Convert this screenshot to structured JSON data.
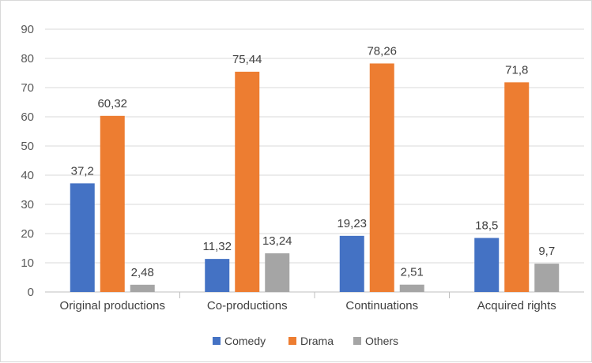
{
  "chart_data": {
    "type": "bar",
    "categories": [
      "Original productions",
      "Co-productions",
      "Continuations",
      "Acquired rights"
    ],
    "series": [
      {
        "name": "Comedy",
        "color": "#4472c4",
        "values": [
          37.2,
          11.32,
          19.23,
          18.5
        ],
        "labels": [
          "37,2",
          "11,32",
          "19,23",
          "18,5"
        ]
      },
      {
        "name": "Drama",
        "color": "#ed7d31",
        "values": [
          60.32,
          75.44,
          78.26,
          71.8
        ],
        "labels": [
          "60,32",
          "75,44",
          "78,26",
          "71,8"
        ]
      },
      {
        "name": "Others",
        "color": "#a5a5a5",
        "values": [
          2.48,
          13.24,
          2.51,
          9.7
        ],
        "labels": [
          "2,48",
          "13,24",
          "2,51",
          "9,7"
        ]
      }
    ],
    "ylim": [
      0,
      90
    ],
    "yticks": [
      0,
      10,
      20,
      30,
      40,
      50,
      60,
      70,
      80,
      90
    ],
    "grid": true,
    "legend": "bottom"
  }
}
